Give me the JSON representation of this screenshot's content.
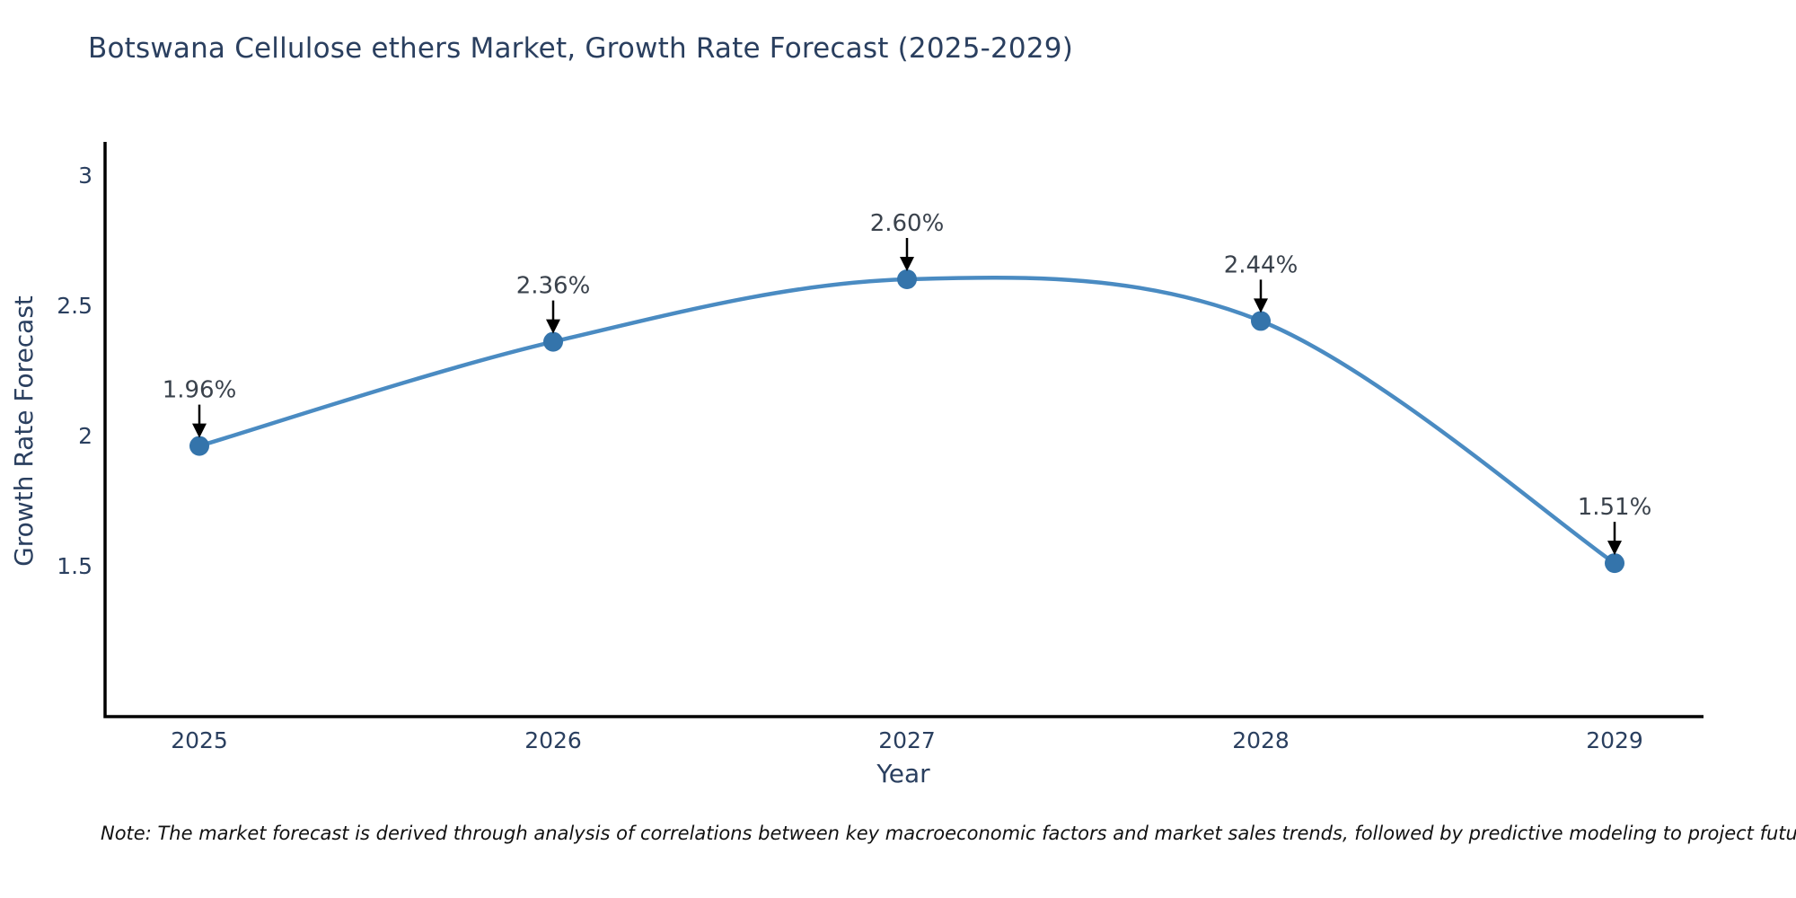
{
  "chart_data": {
    "type": "line",
    "title": "Botswana Cellulose ethers Market, Growth Rate Forecast (2025-2029)",
    "xlabel": "Year",
    "ylabel": "Growth Rate Forecast",
    "categories": [
      "2025",
      "2026",
      "2027",
      "2028",
      "2029"
    ],
    "values": [
      1.96,
      2.36,
      2.6,
      2.44,
      1.51
    ],
    "point_labels": [
      "1.96%",
      "2.36%",
      "2.60%",
      "2.44%",
      "1.51%"
    ],
    "yticks": [
      3,
      2.5,
      2,
      1.5
    ],
    "ytick_labels": [
      "3",
      "2.5",
      "2",
      "1.5"
    ],
    "ylim": [
      0.9,
      3.1
    ],
    "grid": false,
    "legend": "none",
    "line_color": "#4a8bc2",
    "marker_color": "#3474ab",
    "arrow_color": "#000000",
    "axis_color": "#000000",
    "text_color": "#2a3f5f",
    "annotation_color": "#3a424c"
  },
  "note": "Note: The market forecast is derived through analysis of correlations between key macroeconomic factors and market sales trends, followed by predictive modeling to project future sales"
}
